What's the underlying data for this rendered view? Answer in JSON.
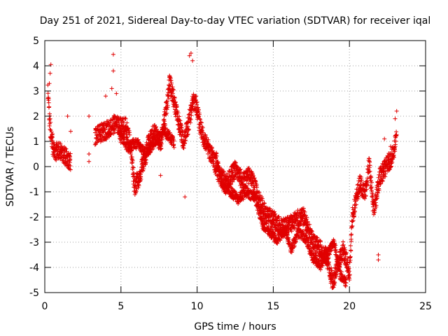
{
  "chart_data": {
    "type": "scatter",
    "title": "Day 251 of 2021, Sidereal Day-to-day VTEC variation (SDTVAR) for receiver iqal",
    "xlabel": "GPS time / hours",
    "ylabel": "SDTVAR / TECUs",
    "xlim": [
      0,
      25
    ],
    "ylim": [
      -5,
      5
    ],
    "xticks": [
      "0",
      "5",
      "10",
      "15",
      "20",
      "25"
    ],
    "yticks": [
      "-5",
      "-4",
      "-3",
      "-2",
      "-1",
      "0",
      "1",
      "2",
      "3",
      "4",
      "5"
    ],
    "grid": true,
    "marker": "+",
    "color": "#e00000",
    "series": [
      {
        "name": "SDTVAR",
        "anchors": [
          [
            0.2,
            2.9
          ],
          [
            0.3,
            2.0
          ],
          [
            0.4,
            1.2
          ],
          [
            0.6,
            0.6
          ],
          [
            1.0,
            0.6
          ],
          [
            1.5,
            0.3
          ],
          [
            1.7,
            0.2
          ],
          [
            3.3,
            1.2
          ],
          [
            3.6,
            1.3
          ],
          [
            4.2,
            1.5
          ],
          [
            4.6,
            1.7
          ],
          [
            4.9,
            1.6
          ],
          [
            5.3,
            1.6
          ],
          [
            5.6,
            1.0
          ],
          [
            5.9,
            -0.8
          ],
          [
            6.2,
            -0.4
          ],
          [
            6.6,
            0.4
          ],
          [
            6.8,
            0.9
          ],
          [
            7.2,
            1.4
          ],
          [
            7.6,
            0.9
          ],
          [
            7.9,
            2.0
          ],
          [
            8.2,
            3.3
          ],
          [
            8.5,
            2.6
          ],
          [
            8.8,
            1.7
          ],
          [
            9.1,
            1.0
          ],
          [
            9.4,
            1.6
          ],
          [
            9.7,
            2.5
          ],
          [
            9.9,
            2.6
          ],
          [
            10.2,
            1.6
          ],
          [
            10.5,
            1.0
          ],
          [
            11.0,
            0.4
          ],
          [
            11.5,
            -0.4
          ],
          [
            12.0,
            -0.6
          ],
          [
            12.5,
            -0.1
          ],
          [
            13.0,
            -0.6
          ],
          [
            13.5,
            -0.3
          ],
          [
            14.0,
            -1.2
          ],
          [
            14.5,
            -1.9
          ],
          [
            15.0,
            -2.1
          ],
          [
            15.5,
            -2.4
          ],
          [
            16.0,
            -2.3
          ],
          [
            16.5,
            -2.1
          ],
          [
            17.0,
            -2.0
          ],
          [
            17.3,
            -2.5
          ],
          [
            17.6,
            -3.0
          ],
          [
            18.0,
            -3.2
          ],
          [
            18.5,
            -3.6
          ],
          [
            18.9,
            -4.6
          ],
          [
            19.2,
            -3.9
          ],
          [
            19.6,
            -3.3
          ],
          [
            20.0,
            -4.2
          ],
          [
            20.2,
            -2.0
          ],
          [
            20.4,
            -1.4
          ],
          [
            20.7,
            -0.6
          ],
          [
            21.0,
            -1.1
          ],
          [
            21.3,
            0.1
          ],
          [
            21.6,
            -1.8
          ],
          [
            22.0,
            -0.4
          ],
          [
            22.5,
            0.1
          ],
          [
            22.9,
            0.5
          ],
          [
            23.1,
            1.5
          ]
        ],
        "branches": [
          [
            [
              4.9,
              1.2
            ],
            [
              5.2,
              1.0
            ],
            [
              5.5,
              0.7
            ],
            [
              5.8,
              0.9
            ],
            [
              6.2,
              0.9
            ],
            [
              6.6,
              0.5
            ],
            [
              7.0,
              0.8
            ],
            [
              7.4,
              1.1
            ],
            [
              7.8,
              1.4
            ],
            [
              8.2,
              1.2
            ],
            [
              8.5,
              0.9
            ]
          ],
          [
            [
              11.2,
              0.5
            ],
            [
              11.7,
              -0.8
            ],
            [
              12.2,
              -1.0
            ],
            [
              12.7,
              -1.3
            ],
            [
              13.2,
              -1.0
            ],
            [
              13.8,
              -1.2
            ],
            [
              14.3,
              -2.3
            ],
            [
              14.8,
              -2.6
            ],
            [
              15.2,
              -2.9
            ],
            [
              15.8,
              -2.5
            ],
            [
              16.2,
              -3.3
            ],
            [
              16.6,
              -2.6
            ],
            [
              17.1,
              -2.8
            ],
            [
              17.6,
              -3.6
            ],
            [
              18.1,
              -3.9
            ],
            [
              18.6,
              -3.4
            ],
            [
              19.0,
              -3.0
            ],
            [
              19.4,
              -4.3
            ],
            [
              19.8,
              -4.6
            ]
          ]
        ],
        "isolated": [
          [
            0.4,
            4.05
          ],
          [
            0.35,
            3.7
          ],
          [
            0.3,
            3.3
          ],
          [
            0.5,
            1.3
          ],
          [
            1.5,
            2.0
          ],
          [
            1.7,
            1.4
          ],
          [
            2.9,
            2.0
          ],
          [
            2.9,
            0.5
          ],
          [
            2.9,
            0.2
          ],
          [
            4.5,
            4.45
          ],
          [
            4.5,
            3.8
          ],
          [
            4.4,
            3.1
          ],
          [
            4.7,
            2.9
          ],
          [
            4.0,
            2.8
          ],
          [
            9.5,
            4.4
          ],
          [
            9.6,
            4.5
          ],
          [
            9.7,
            4.2
          ],
          [
            9.2,
            -1.2
          ],
          [
            7.6,
            -0.35
          ],
          [
            21.9,
            -3.5
          ],
          [
            21.9,
            -3.7
          ],
          [
            23.1,
            2.2
          ],
          [
            23.0,
            1.9
          ],
          [
            22.7,
            0.8
          ],
          [
            20.0,
            -4.5
          ],
          [
            22.3,
            1.1
          ]
        ]
      }
    ]
  }
}
